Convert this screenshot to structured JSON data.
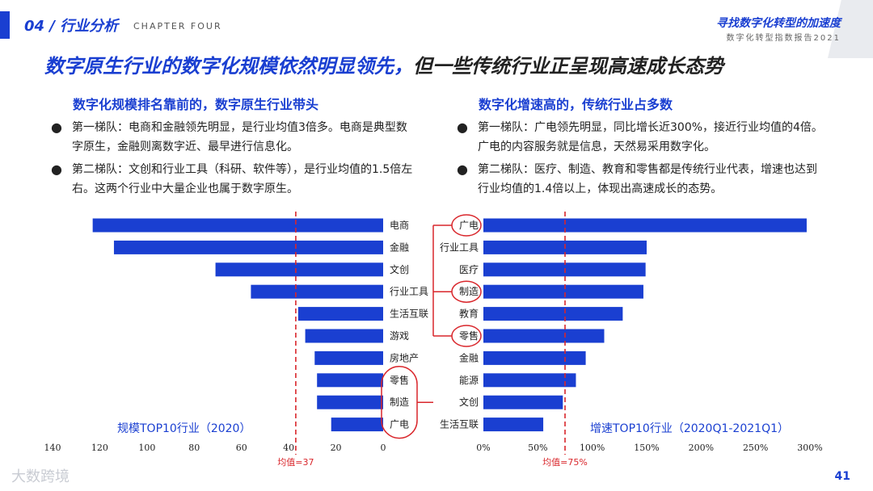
{
  "header": {
    "chapter_title": "04 / 行业分析",
    "chapter_en": "CHAPTER FOUR",
    "report_title": "寻找数字化转型的加速度",
    "report_subtitle": "数字化转型指数报告2021"
  },
  "headline": {
    "part1": "数字原生行业的数字化规模依然明显领先，",
    "part2": "但一些传统行业正呈现高速成长态势"
  },
  "left_panel": {
    "subheading": "数字化规模排名靠前的，数字原生行业带头",
    "bullets": [
      "第一梯队：电商和金融领先明显，是行业均值3倍多。电商是典型数字原生，金融则离数字近、最早进行信息化。",
      "第二梯队：文创和行业工具（科研、软件等），是行业均值的1.5倍左右。这两个行业中大量企业也属于数字原生。"
    ]
  },
  "right_panel": {
    "subheading": "数字化增速高的，传统行业占多数",
    "bullets": [
      "第一梯队：广电领先明显，同比增长近300%，接近行业均值的4倍。广电的内容服务就是信息，天然易采用数字化。",
      "第二梯队：医疗、制造、教育和零售都是传统行业代表，增速也达到行业均值的1.4倍以上，体现出高速成长的态势。"
    ]
  },
  "chart_data": [
    {
      "type": "bar",
      "orientation": "horizontal",
      "caption": "规模TOP10行业（2020）",
      "categories": [
        "电商",
        "金融",
        "文创",
        "行业工具",
        "生活互联",
        "游戏",
        "房地产",
        "零售",
        "制造",
        "广电"
      ],
      "values": [
        123,
        114,
        71,
        56,
        36,
        33,
        29,
        28,
        28,
        22
      ],
      "xlim": [
        0,
        140
      ],
      "x_reversed": true,
      "ticks": [
        "140",
        "120",
        "100",
        "80",
        "60",
        "40",
        "20",
        "0"
      ],
      "reference_line": {
        "value": 37,
        "label": "均值=37"
      },
      "highlighted": [
        "零售",
        "制造",
        "广电"
      ],
      "color": "#1a3fd1"
    },
    {
      "type": "bar",
      "orientation": "horizontal",
      "caption": "增速TOP10行业（2020Q1-2021Q1）",
      "categories": [
        "广电",
        "行业工具",
        "医疗",
        "制造",
        "教育",
        "零售",
        "金融",
        "能源",
        "文创",
        "生活互联"
      ],
      "values": [
        297,
        150,
        149,
        147,
        128,
        111,
        94,
        85,
        73,
        55
      ],
      "xlim": [
        0,
        300
      ],
      "ticks": [
        "0%",
        "50%",
        "100%",
        "150%",
        "200%",
        "250%",
        "300%"
      ],
      "reference_line": {
        "value": 75,
        "label": "均值=75%"
      },
      "highlighted": [
        "广电",
        "制造",
        "零售"
      ],
      "color": "#1a3fd1"
    }
  ],
  "footer": {
    "page_number": "41",
    "watermark": "大数跨境"
  },
  "colors": {
    "accent": "#1a3fd1",
    "reference": "#d9262b",
    "highlight": "#d9262b"
  }
}
